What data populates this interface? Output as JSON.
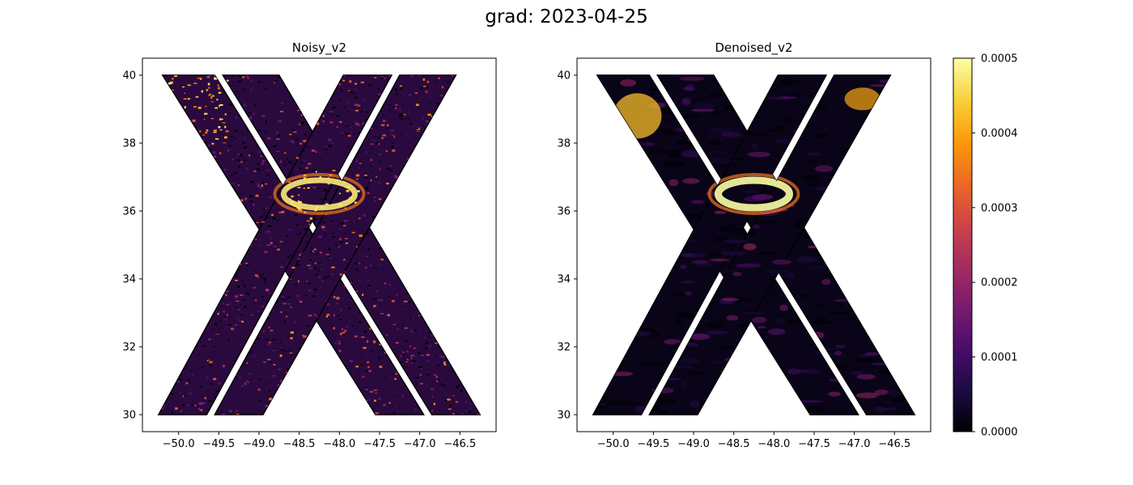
{
  "figure": {
    "suptitle": "grad: 2023-04-25"
  },
  "chart_data": [
    {
      "type": "heatmap",
      "title": "Noisy_v2",
      "xlabel": "",
      "ylabel": "",
      "xlim": [
        -50.45,
        -46.05
      ],
      "ylim": [
        29.5,
        40.5
      ],
      "xticks": [
        -50.0,
        -49.5,
        -49.0,
        -48.5,
        -48.0,
        -47.5,
        -47.0,
        -46.5
      ],
      "xtick_labels": [
        "−50.0",
        "−49.5",
        "−49.0",
        "−48.5",
        "−48.0",
        "−47.5",
        "−47.0",
        "−46.5"
      ],
      "yticks": [
        30,
        32,
        34,
        36,
        38,
        40
      ],
      "ytick_labels": [
        "30",
        "32",
        "34",
        "36",
        "38",
        "40"
      ],
      "grid": false,
      "colormap": "inferno",
      "swaths": [
        {
          "x_top": [
            -50.2,
            -49.55
          ],
          "y_top": 40,
          "x_bottom": [
            -47.55,
            -46.95
          ],
          "y_bottom": 30
        },
        {
          "x_top": [
            -49.45,
            -48.75
          ],
          "y_top": 40,
          "x_bottom": [
            -46.85,
            -46.25
          ],
          "y_bottom": 30
        },
        {
          "x_top": [
            -47.95,
            -47.35
          ],
          "y_top": 40,
          "x_bottom": [
            -50.25,
            -49.65
          ],
          "y_bottom": 30
        },
        {
          "x_top": [
            -47.25,
            -46.55
          ],
          "y_top": 40,
          "x_bottom": [
            -49.55,
            -48.95
          ],
          "y_bottom": 30
        }
      ],
      "eddy": {
        "x": -48.25,
        "y": 36.5,
        "value": 0.0005
      },
      "intensity": "noisy"
    },
    {
      "type": "heatmap",
      "title": "Denoised_v2",
      "xlabel": "",
      "ylabel": "",
      "xlim": [
        -50.45,
        -46.05
      ],
      "ylim": [
        29.5,
        40.5
      ],
      "xticks": [
        -50.0,
        -49.5,
        -49.0,
        -48.5,
        -48.0,
        -47.5,
        -47.0,
        -46.5
      ],
      "xtick_labels": [
        "−50.0",
        "−49.5",
        "−49.0",
        "−48.5",
        "−48.0",
        "−47.5",
        "−47.0",
        "−46.5"
      ],
      "yticks": [
        30,
        32,
        34,
        36,
        38,
        40
      ],
      "ytick_labels": [
        "30",
        "32",
        "34",
        "36",
        "38",
        "40"
      ],
      "grid": false,
      "colormap": "inferno",
      "swaths": [
        {
          "x_top": [
            -50.2,
            -49.55
          ],
          "y_top": 40,
          "x_bottom": [
            -47.55,
            -46.95
          ],
          "y_bottom": 30
        },
        {
          "x_top": [
            -49.45,
            -48.75
          ],
          "y_top": 40,
          "x_bottom": [
            -46.85,
            -46.25
          ],
          "y_bottom": 30
        },
        {
          "x_top": [
            -47.95,
            -47.35
          ],
          "y_top": 40,
          "x_bottom": [
            -50.25,
            -49.65
          ],
          "y_bottom": 30
        },
        {
          "x_top": [
            -47.25,
            -46.55
          ],
          "y_top": 40,
          "x_bottom": [
            -49.55,
            -48.95
          ],
          "y_bottom": 30
        }
      ],
      "eddy": {
        "x": -48.25,
        "y": 36.5,
        "value": 0.0005
      },
      "intensity": "smooth"
    }
  ],
  "colorbar": {
    "min": 0.0,
    "max": 0.0005,
    "ticks": [
      0.0,
      0.0001,
      0.0002,
      0.0003,
      0.0004,
      0.0005
    ],
    "tick_labels": [
      "0.0000",
      "0.0001",
      "0.0002",
      "0.0003",
      "0.0004",
      "0.0005"
    ],
    "colormap": "inferno",
    "colors": [
      "#000004",
      "#1b0c41",
      "#4a0c6b",
      "#781c6d",
      "#a52c60",
      "#cf4446",
      "#ed6925",
      "#fb9b06",
      "#f7d13d",
      "#fcffa4"
    ]
  }
}
